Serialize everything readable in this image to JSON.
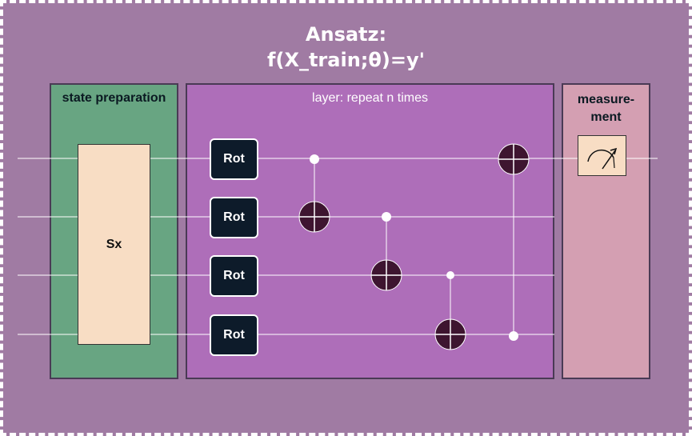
{
  "title": {
    "line1": "Ansatz:",
    "line2": "f(X_train;θ)=y'"
  },
  "sections": {
    "state_preparation": "state preparation",
    "layer": "layer: repeat n times",
    "measurement_line1": "measure-",
    "measurement_line2": "ment"
  },
  "state_prep_gate": "Sx",
  "rot_gates": [
    "Rot",
    "Rot",
    "Rot",
    "Rot"
  ],
  "colors": {
    "background": "#a07ba3",
    "state_preparation": "#68a582",
    "layer": "#ae6eb9",
    "measurement": "#d49fb2",
    "gate_fill": "#f8ddc4",
    "rot_fill": "#0d1b2a",
    "cnot_fill": "#3e1530"
  },
  "icons": [
    "measurement-meter-icon",
    "cnot-target-icon",
    "control-dot-icon"
  ]
}
